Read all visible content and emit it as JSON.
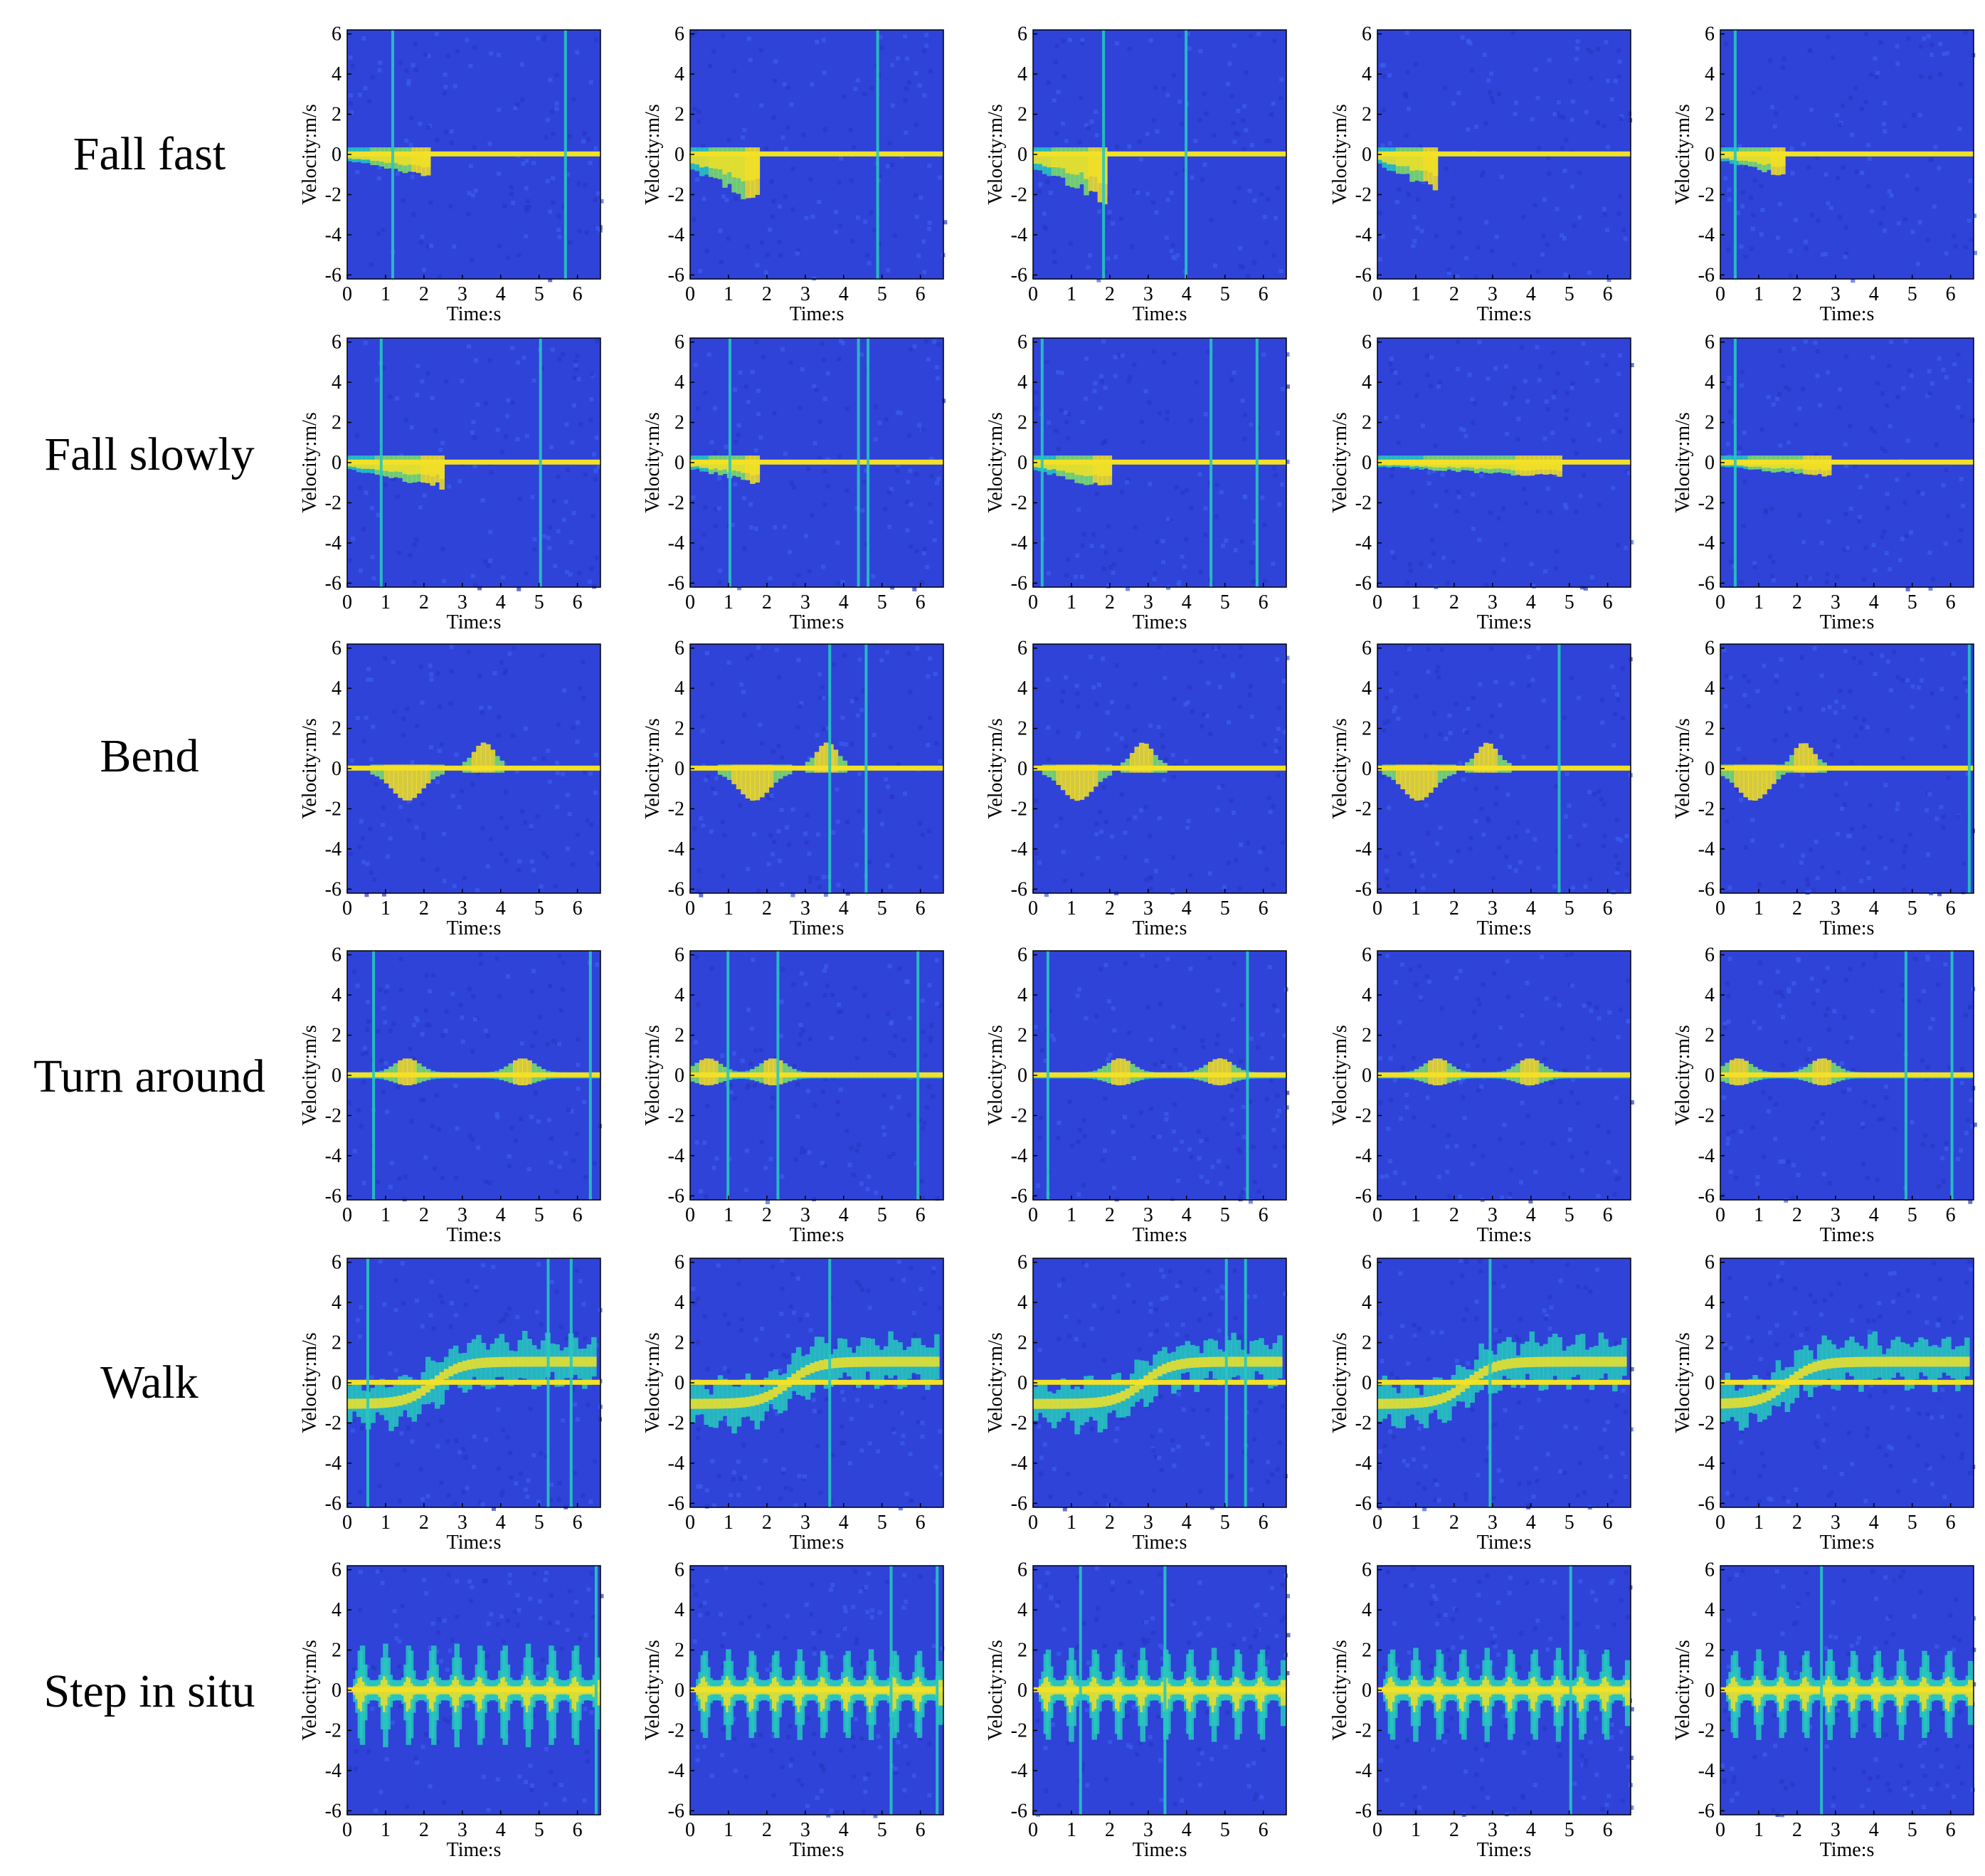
{
  "chart_data": {
    "type": "heatmap",
    "description_kind": "micro-Doppler spectrogram grid",
    "rows": [
      "Fall fast",
      "Fall slowly",
      "Bend",
      "Turn around",
      "Walk",
      "Step in situ"
    ],
    "columns_per_row": 5,
    "xlabel": "Time:s",
    "ylabel": "Velocity:m/s",
    "xlim": [
      0,
      6.6
    ],
    "ylim": [
      -6.2,
      6.2
    ],
    "xticks": [
      0,
      1,
      2,
      3,
      4,
      5,
      6
    ],
    "yticks": [
      6,
      4,
      2,
      0,
      -2,
      -4,
      -6
    ],
    "colormap": {
      "background": "#2f43d8",
      "low": "#3a5cf0",
      "mid": "#27c7c0",
      "high": "#f2e126"
    },
    "grid": false,
    "panels": [
      [
        {
          "signature": "fall",
          "end_time": 2.1,
          "min_velocity": -1.2,
          "spikes": [
            1.15,
            5.65
          ]
        },
        {
          "signature": "fall",
          "end_time": 1.8,
          "min_velocity": -2.8,
          "spikes": [
            4.85
          ]
        },
        {
          "signature": "fall",
          "end_time": 1.9,
          "min_velocity": -2.6,
          "spikes": [
            1.8,
            3.95
          ]
        },
        {
          "signature": "fall",
          "end_time": 1.5,
          "min_velocity": -2.0,
          "spikes": []
        },
        {
          "signature": "fall",
          "end_time": 1.6,
          "min_velocity": -1.2,
          "spikes": [
            0.35
          ]
        }
      ],
      [
        {
          "signature": "slowfall",
          "end_time": 2.5,
          "min_velocity": -1.4,
          "spikes": [
            0.85,
            5.0
          ]
        },
        {
          "signature": "slowfall",
          "end_time": 1.8,
          "min_velocity": -1.2,
          "spikes": [
            1.0,
            4.35,
            4.6
          ]
        },
        {
          "signature": "slowfall",
          "end_time": 2.0,
          "min_velocity": -1.5,
          "spikes": [
            0.2,
            4.6,
            5.8
          ]
        },
        {
          "signature": "slowfall",
          "end_time": 4.8,
          "min_velocity": -0.8,
          "spikes": []
        },
        {
          "signature": "slowfall",
          "end_time": 2.8,
          "min_velocity": -0.8,
          "spikes": [
            0.35
          ]
        }
      ],
      [
        {
          "signature": "bend",
          "neg_time": 1.5,
          "pos_time": 3.5,
          "spikes": []
        },
        {
          "signature": "bend",
          "neg_time": 1.6,
          "pos_time": 3.5,
          "spikes": [
            3.6,
            4.55
          ]
        },
        {
          "signature": "bend",
          "neg_time": 1.1,
          "pos_time": 2.8,
          "spikes": []
        },
        {
          "signature": "bend",
          "neg_time": 1.0,
          "pos_time": 2.8,
          "spikes": [
            4.7
          ]
        },
        {
          "signature": "bend",
          "neg_time": 0.8,
          "pos_time": 2.1,
          "spikes": [
            6.45
          ]
        }
      ],
      [
        {
          "signature": "turn",
          "bumps": [
            1.5,
            4.5
          ],
          "spikes": [
            0.65,
            6.3
          ]
        },
        {
          "signature": "turn",
          "bumps": [
            0.4,
            2.1
          ],
          "spikes": [
            0.95,
            2.25,
            5.9
          ]
        },
        {
          "signature": "turn",
          "bumps": [
            2.2,
            4.8
          ],
          "spikes": [
            0.35,
            5.55
          ]
        },
        {
          "signature": "turn",
          "bumps": [
            1.5,
            3.9
          ],
          "spikes": []
        },
        {
          "signature": "turn",
          "bumps": [
            0.4,
            2.6
          ],
          "spikes": [
            4.8,
            6.0
          ]
        }
      ],
      [
        {
          "signature": "walk",
          "cross_time": 2.2,
          "spikes": [
            0.5,
            5.2,
            5.8
          ]
        },
        {
          "signature": "walk",
          "cross_time": 2.5,
          "spikes": [
            3.6
          ]
        },
        {
          "signature": "walk",
          "cross_time": 2.8,
          "spikes": [
            5.0,
            5.5
          ]
        },
        {
          "signature": "walk",
          "cross_time": 2.3,
          "spikes": [
            2.9
          ]
        },
        {
          "signature": "walk",
          "cross_time": 1.7,
          "spikes": []
        }
      ],
      [
        {
          "signature": "step",
          "period": 0.62,
          "amplitude": 2.6,
          "spikes": [
            6.45
          ]
        },
        {
          "signature": "step",
          "period": 0.62,
          "amplitude": 2.2,
          "spikes": [
            5.2,
            6.4
          ]
        },
        {
          "signature": "step",
          "period": 0.62,
          "amplitude": 2.3,
          "spikes": [
            1.2,
            3.4
          ]
        },
        {
          "signature": "step",
          "period": 0.62,
          "amplitude": 2.3,
          "spikes": [
            5.0
          ]
        },
        {
          "signature": "step",
          "period": 0.62,
          "amplitude": 2.2,
          "spikes": [
            2.6
          ]
        }
      ]
    ]
  }
}
